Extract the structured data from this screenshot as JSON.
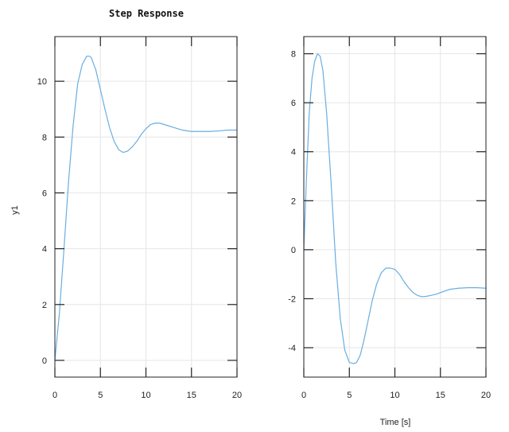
{
  "title": "Step Response",
  "xlabel": "Time [s]",
  "chart_data": [
    {
      "type": "line",
      "title": "Step Response",
      "xlabel": "",
      "ylabel": "y1",
      "xlim": [
        0,
        20
      ],
      "ylim": [
        -0.6,
        11.6
      ],
      "xticks": [
        "0",
        "5",
        "10",
        "15",
        "20"
      ],
      "yticks": [
        "0",
        "2",
        "4",
        "6",
        "8",
        "10"
      ],
      "grid": true,
      "series": [
        {
          "color": "#6aaee0",
          "x": [
            0,
            0.5,
            1,
            1.5,
            2,
            2.5,
            3,
            3.5,
            3.8,
            4,
            4.5,
            5,
            5.5,
            6,
            6.5,
            7,
            7.5,
            8,
            8.5,
            9,
            9.5,
            10,
            10.5,
            11,
            11.5,
            12,
            12.5,
            13,
            13.5,
            14,
            15,
            16,
            17,
            18,
            19,
            20
          ],
          "y": [
            0,
            1.7,
            4.0,
            6.4,
            8.4,
            9.9,
            10.6,
            10.9,
            10.9,
            10.85,
            10.4,
            9.7,
            9.0,
            8.35,
            7.85,
            7.55,
            7.45,
            7.5,
            7.65,
            7.85,
            8.1,
            8.3,
            8.45,
            8.5,
            8.5,
            8.45,
            8.4,
            8.35,
            8.3,
            8.25,
            8.2,
            8.2,
            8.2,
            8.22,
            8.25,
            8.25
          ]
        }
      ]
    },
    {
      "type": "line",
      "title": "",
      "xlabel": "Time [s]",
      "ylabel": "",
      "xlim": [
        0,
        20
      ],
      "ylim": [
        -5.2,
        8.7
      ],
      "xticks": [
        "0",
        "5",
        "10",
        "15",
        "20"
      ],
      "yticks": [
        "-4",
        "-2",
        "0",
        "2",
        "4",
        "6",
        "8"
      ],
      "grid": true,
      "series": [
        {
          "color": "#6aaee0",
          "x": [
            0,
            0.3,
            0.6,
            0.9,
            1.2,
            1.5,
            1.8,
            2.1,
            2.5,
            3,
            3.5,
            4,
            4.5,
            5,
            5.5,
            5.8,
            6.2,
            6.6,
            7,
            7.5,
            8,
            8.5,
            9,
            9.5,
            10,
            10.5,
            11,
            11.5,
            12,
            12.5,
            13,
            13.5,
            14,
            14.5,
            15,
            16,
            17,
            18,
            19,
            20
          ],
          "y": [
            0,
            3.0,
            5.6,
            7.0,
            7.7,
            8.0,
            7.9,
            7.3,
            5.6,
            2.7,
            -0.5,
            -2.8,
            -4.1,
            -4.6,
            -4.65,
            -4.6,
            -4.3,
            -3.7,
            -3.0,
            -2.1,
            -1.4,
            -0.95,
            -0.75,
            -0.75,
            -0.8,
            -1.0,
            -1.3,
            -1.55,
            -1.75,
            -1.87,
            -1.92,
            -1.9,
            -1.86,
            -1.82,
            -1.75,
            -1.62,
            -1.57,
            -1.55,
            -1.55,
            -1.57
          ]
        }
      ]
    }
  ]
}
